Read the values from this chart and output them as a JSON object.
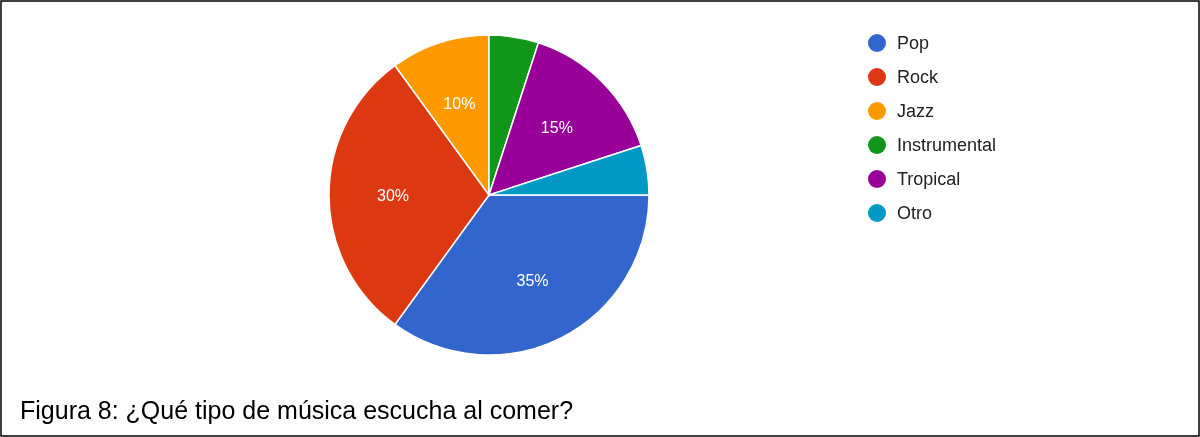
{
  "chart_data": {
    "type": "pie",
    "categories": [
      "Pop",
      "Rock",
      "Jazz",
      "Instrumental",
      "Tropical",
      "Otro"
    ],
    "values": [
      35,
      30,
      10,
      5,
      15,
      5
    ],
    "colors": [
      "#3366cc",
      "#dc3912",
      "#ff9900",
      "#109618",
      "#990099",
      "#0099c6"
    ],
    "value_labels": [
      "35%",
      "30%",
      "10%",
      null,
      "15%",
      null
    ],
    "legend": "right",
    "annotations": [
      "Figura 8: ¿Qué tipo de música escucha al comer?"
    ]
  }
}
